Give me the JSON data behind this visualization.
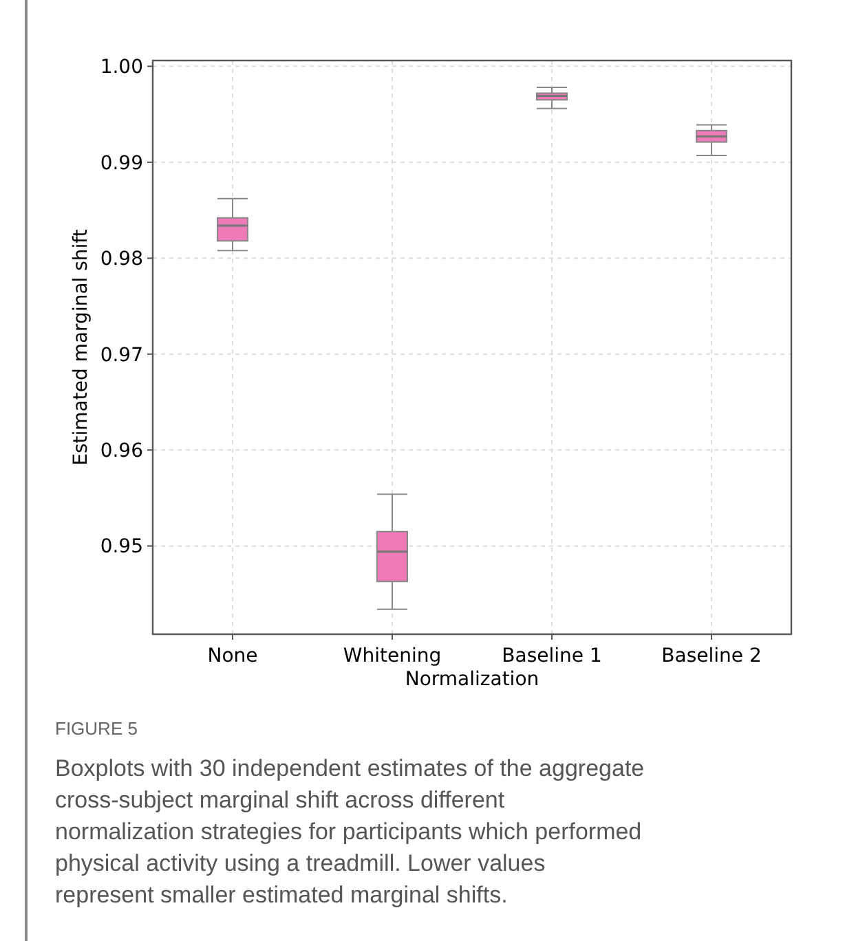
{
  "chart_data": {
    "type": "box",
    "xlabel": "Normalization",
    "ylabel": "Estimated marginal shift",
    "categories": [
      "None",
      "Whitening",
      "Baseline 1",
      "Baseline 2"
    ],
    "boxes": [
      {
        "low": 0.9808,
        "q1": 0.9818,
        "median": 0.9834,
        "q3": 0.9842,
        "high": 0.9862
      },
      {
        "low": 0.9434,
        "q1": 0.9463,
        "median": 0.9494,
        "q3": 0.9515,
        "high": 0.9554
      },
      {
        "low": 0.9956,
        "q1": 0.9965,
        "median": 0.9969,
        "q3": 0.9972,
        "high": 0.9978
      },
      {
        "low": 0.9907,
        "q1": 0.9921,
        "median": 0.9927,
        "q3": 0.9933,
        "high": 0.9939
      }
    ],
    "color": "#ef7ab8",
    "ylim": [
      0.9408,
      1.0006
    ],
    "yticks": [
      {
        "value": 0.95,
        "label": "0.95"
      },
      {
        "value": 0.96,
        "label": "0.96"
      },
      {
        "value": 0.97,
        "label": "0.97"
      },
      {
        "value": 0.98,
        "label": "0.98"
      },
      {
        "value": 0.99,
        "label": "0.99"
      },
      {
        "value": 1.0,
        "label": "1.00"
      }
    ],
    "grid": true,
    "annotations": [
      "FIGURE 5",
      "Boxplots with 30 independent estimates of the aggregate cross-subject marginal shift across different normalization strategies for participants which performed physical activity using a treadmill. Lower values represent smaller estimated marginal shifts."
    ]
  }
}
